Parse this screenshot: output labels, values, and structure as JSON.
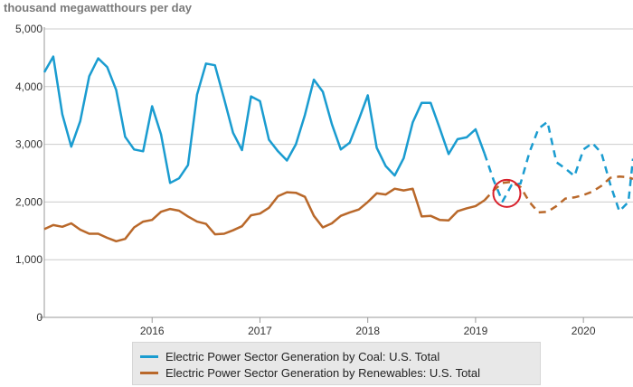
{
  "chart_data": {
    "type": "line",
    "ylabel": "thousand megawatthours per day",
    "ylim": [
      0,
      5000
    ],
    "yticks": [
      0,
      1000,
      2000,
      3000,
      4000,
      5000
    ],
    "ytick_labels": [
      "0",
      "1,000",
      "2,000",
      "3,000",
      "4,000",
      "5,000"
    ],
    "xlim": [
      2015.0,
      2020.46
    ],
    "xticks": [
      2016,
      2017,
      2018,
      2019,
      2020
    ],
    "xtick_labels": [
      "2016",
      "2017",
      "2018",
      "2019",
      "2020"
    ],
    "grid": true,
    "legend": "bottom",
    "annotation": {
      "type": "circle",
      "x": 2019.29,
      "y": 2150
    },
    "series": [
      {
        "name": "Electric Power Sector Generation by Coal: U.S. Total",
        "color": "#1a9cd0",
        "historical_end_index": 49,
        "x": [
          2015.0,
          2015.083,
          2015.167,
          2015.25,
          2015.333,
          2015.417,
          2015.5,
          2015.583,
          2015.667,
          2015.75,
          2015.833,
          2015.917,
          2016.0,
          2016.083,
          2016.167,
          2016.25,
          2016.333,
          2016.417,
          2016.5,
          2016.583,
          2016.667,
          2016.75,
          2016.833,
          2016.917,
          2017.0,
          2017.083,
          2017.167,
          2017.25,
          2017.333,
          2017.417,
          2017.5,
          2017.583,
          2017.667,
          2017.75,
          2017.833,
          2017.917,
          2018.0,
          2018.083,
          2018.167,
          2018.25,
          2018.333,
          2018.417,
          2018.5,
          2018.583,
          2018.667,
          2018.75,
          2018.833,
          2018.917,
          2019.0,
          2019.083,
          2019.167,
          2019.25,
          2019.333,
          2019.417,
          2019.5,
          2019.583,
          2019.667,
          2019.75,
          2019.833,
          2019.917,
          2020.0,
          2020.083,
          2020.167,
          2020.25,
          2020.333,
          2020.417
        ],
        "values": [
          4250,
          4520,
          3520,
          2960,
          3400,
          4180,
          4490,
          4340,
          3940,
          3130,
          2910,
          2880,
          3660,
          3170,
          2330,
          2410,
          2640,
          3860,
          4400,
          4370,
          3790,
          3200,
          2900,
          3830,
          3750,
          3080,
          2880,
          2720,
          3000,
          3510,
          4120,
          3910,
          3350,
          2910,
          3030,
          3430,
          3850,
          2940,
          2620,
          2460,
          2760,
          3380,
          3720,
          3720,
          3280,
          2830,
          3090,
          3120,
          3260,
          2840,
          2380,
          2010,
          2290,
          2320,
          2860,
          3270,
          3390,
          2690,
          2580,
          2450,
          2910,
          3020,
          2850,
          2300,
          1840,
          2000
        ],
        "projected_end_value": 2750
      },
      {
        "name": "Electric Power Sector Generation by Renewables: U.S. Total",
        "color": "#b9682a",
        "historical_end_index": 49,
        "x": [
          2015.0,
          2015.083,
          2015.167,
          2015.25,
          2015.333,
          2015.417,
          2015.5,
          2015.583,
          2015.667,
          2015.75,
          2015.833,
          2015.917,
          2016.0,
          2016.083,
          2016.167,
          2016.25,
          2016.333,
          2016.417,
          2016.5,
          2016.583,
          2016.667,
          2016.75,
          2016.833,
          2016.917,
          2017.0,
          2017.083,
          2017.167,
          2017.25,
          2017.333,
          2017.417,
          2017.5,
          2017.583,
          2017.667,
          2017.75,
          2017.833,
          2017.917,
          2018.0,
          2018.083,
          2018.167,
          2018.25,
          2018.333,
          2018.417,
          2018.5,
          2018.583,
          2018.667,
          2018.75,
          2018.833,
          2018.917,
          2019.0,
          2019.083,
          2019.167,
          2019.25,
          2019.333,
          2019.417,
          2019.5,
          2019.583,
          2019.667,
          2019.75,
          2019.833,
          2019.917,
          2020.0,
          2020.083,
          2020.167,
          2020.25,
          2020.333,
          2020.417
        ],
        "values": [
          1530,
          1600,
          1570,
          1630,
          1520,
          1450,
          1450,
          1380,
          1320,
          1360,
          1560,
          1660,
          1690,
          1830,
          1880,
          1850,
          1750,
          1660,
          1620,
          1440,
          1450,
          1510,
          1580,
          1770,
          1800,
          1900,
          2100,
          2170,
          2160,
          2090,
          1760,
          1560,
          1630,
          1760,
          1820,
          1870,
          2000,
          2150,
          2130,
          2230,
          2200,
          2230,
          1750,
          1760,
          1690,
          1680,
          1840,
          1890,
          1930,
          2030,
          2200,
          2330,
          2350,
          2260,
          2000,
          1820,
          1830,
          1930,
          2060,
          2080,
          2120,
          2180,
          2280,
          2420,
          2440,
          2430
        ],
        "projected_end_value": 2400
      }
    ]
  }
}
